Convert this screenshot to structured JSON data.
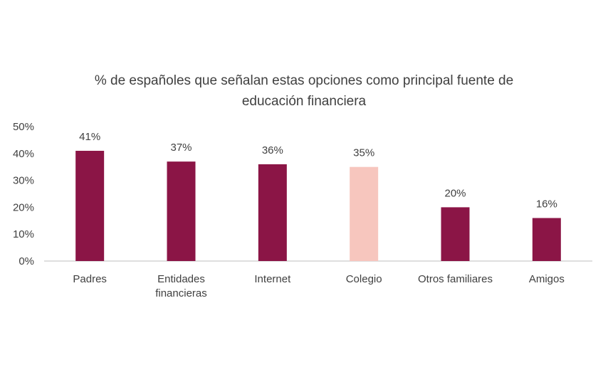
{
  "chart_data": {
    "type": "bar",
    "title_lines": [
      "% de españoles que señalan estas opciones como principal fuente de",
      "educación financiera"
    ],
    "categories": [
      [
        "Padres"
      ],
      [
        "Entidades",
        "financieras"
      ],
      [
        "Internet"
      ],
      [
        "Colegio"
      ],
      [
        "Otros familiares"
      ],
      [
        "Amigos"
      ]
    ],
    "values": [
      41,
      37,
      36,
      35,
      20,
      16
    ],
    "value_labels": [
      "41%",
      "37%",
      "36%",
      "35%",
      "20%",
      "16%"
    ],
    "ylim": [
      0,
      50
    ],
    "yticks": [
      0,
      10,
      20,
      30,
      40,
      50
    ],
    "ytick_labels": [
      "0%",
      "10%",
      "20%",
      "30%",
      "40%",
      "50%"
    ],
    "grid": false,
    "colors": {
      "default_bar": "#8B1546",
      "highlight_bar": "#F7C6BE",
      "axis": "#bfbfbf",
      "text": "#404040"
    },
    "highlight_index": 3
  }
}
